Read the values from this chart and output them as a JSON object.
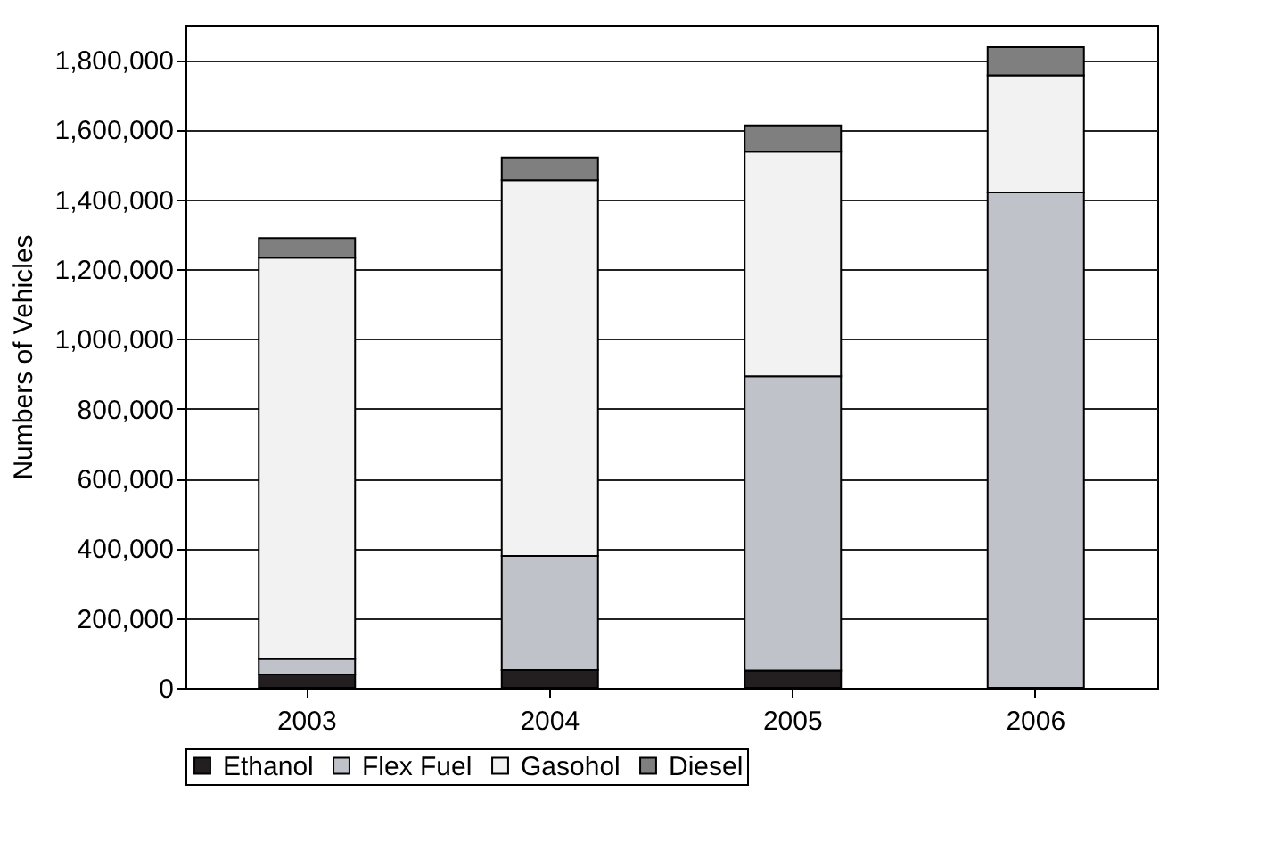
{
  "chart_data": {
    "type": "bar",
    "stacked": true,
    "ylabel": "Numbers of Vehicles",
    "categories": [
      "2003",
      "2004",
      "2005",
      "2006"
    ],
    "series": [
      {
        "name": "Ethanol",
        "color": "#231f20",
        "values": [
          38000,
          51000,
          50000,
          0
        ]
      },
      {
        "name": "Flex Fuel",
        "color": "#c0c2c9",
        "values": [
          45000,
          327000,
          843000,
          1420000
        ]
      },
      {
        "name": "Gasohol",
        "color": "#f2f2f2",
        "values": [
          1150000,
          1077000,
          644000,
          336000
        ]
      },
      {
        "name": "Diesel",
        "color": "#7f7f7f",
        "values": [
          56000,
          65000,
          75000,
          80000
        ]
      }
    ],
    "ylim": [
      0,
      1900000
    ],
    "yticks": [
      0,
      {
        "value": 200000,
        "label": "200,000"
      },
      {
        "value": 400000,
        "label": "400,000"
      },
      {
        "value": 600000,
        "label": "600,000"
      },
      {
        "value": 800000,
        "label": "800,000"
      },
      {
        "value": 1000000,
        "label": "1,000,000"
      },
      {
        "value": 1200000,
        "label": "1,200,000"
      },
      {
        "value": 1400000,
        "label": "1,400,000"
      },
      {
        "value": 1600000,
        "label": "1,600,000"
      },
      {
        "value": 1800000,
        "label": "1,800,000"
      }
    ],
    "grid": "y",
    "legend": "bottom"
  }
}
